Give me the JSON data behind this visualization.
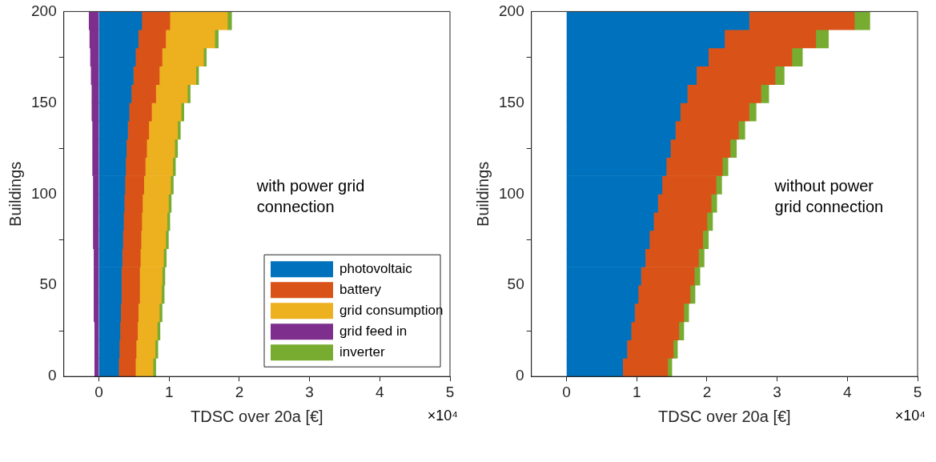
{
  "chart_data": [
    {
      "type": "bar",
      "orientation": "horizontal",
      "stacked": true,
      "x": [
        5,
        15,
        25,
        35,
        45,
        55,
        65,
        75,
        85,
        95,
        105,
        115,
        125,
        135,
        145,
        155,
        165,
        175,
        185,
        195
      ],
      "xlabel": "TDSC over 20a [€]",
      "ylabel": "Buildings",
      "xlim": [
        -0.5,
        5
      ],
      "xticks": [
        0,
        1,
        2,
        3,
        4,
        5
      ],
      "ylim": [
        0,
        200
      ],
      "yticks": [
        0,
        50,
        100,
        150,
        200
      ],
      "grid": false,
      "legend": "bottom right",
      "annotations": [
        "with power grid\nconnection",
        "×10⁴"
      ],
      "series": [
        {
          "name": "photovoltaic",
          "color": "#0072bd",
          "values": [
            0.28,
            0.29,
            0.3,
            0.31,
            0.32,
            0.32,
            0.33,
            0.34,
            0.35,
            0.36,
            0.37,
            0.38,
            0.39,
            0.41,
            0.43,
            0.46,
            0.49,
            0.52,
            0.56,
            0.61
          ]
        },
        {
          "name": "battery",
          "color": "#d95319",
          "values": [
            0.24,
            0.24,
            0.25,
            0.25,
            0.26,
            0.26,
            0.26,
            0.26,
            0.26,
            0.26,
            0.27,
            0.28,
            0.29,
            0.3,
            0.32,
            0.35,
            0.37,
            0.38,
            0.39,
            0.4
          ]
        },
        {
          "name": "grid consumption",
          "color": "#edb120",
          "values": [
            0.25,
            0.27,
            0.28,
            0.3,
            0.31,
            0.32,
            0.33,
            0.35,
            0.36,
            0.37,
            0.38,
            0.39,
            0.4,
            0.41,
            0.42,
            0.45,
            0.52,
            0.59,
            0.7,
            0.82
          ]
        },
        {
          "name": "grid feed in",
          "color": "#7e2f8e",
          "values": [
            -0.06,
            -0.06,
            -0.06,
            -0.07,
            -0.07,
            -0.07,
            -0.07,
            -0.08,
            -0.08,
            -0.08,
            -0.08,
            -0.09,
            -0.09,
            -0.09,
            -0.1,
            -0.1,
            -0.11,
            -0.12,
            -0.13,
            -0.14
          ]
        },
        {
          "name": "inverter",
          "color": "#77ac30",
          "values": [
            0.04,
            0.04,
            0.04,
            0.04,
            0.04,
            0.04,
            0.04,
            0.04,
            0.04,
            0.04,
            0.04,
            0.04,
            0.04,
            0.04,
            0.04,
            0.04,
            0.04,
            0.04,
            0.05,
            0.06
          ]
        }
      ]
    },
    {
      "type": "bar",
      "orientation": "horizontal",
      "stacked": true,
      "x": [
        5,
        15,
        25,
        35,
        45,
        55,
        65,
        75,
        85,
        95,
        105,
        115,
        125,
        135,
        145,
        155,
        165,
        175,
        185,
        195
      ],
      "xlabel": "TDSC over 20a [€]",
      "ylabel": "Buildings",
      "xlim": [
        -0.5,
        5
      ],
      "xticks": [
        0,
        1,
        2,
        3,
        4,
        5
      ],
      "ylim": [
        0,
        200
      ],
      "yticks": [
        0,
        50,
        100,
        150,
        200
      ],
      "grid": false,
      "annotations": [
        "without power\ngrid connection",
        "×10⁴"
      ],
      "series": [
        {
          "color": "#0072bd",
          "values": [
            0.8,
            0.86,
            0.92,
            0.97,
            1.02,
            1.06,
            1.12,
            1.18,
            1.24,
            1.3,
            1.36,
            1.42,
            1.48,
            1.55,
            1.62,
            1.72,
            1.85,
            2.02,
            2.25,
            2.6
          ]
        },
        {
          "color": "#d95319",
          "values": [
            0.64,
            0.66,
            0.68,
            0.7,
            0.74,
            0.76,
            0.76,
            0.76,
            0.76,
            0.76,
            0.77,
            0.8,
            0.85,
            0.9,
            0.98,
            1.05,
            1.12,
            1.19,
            1.3,
            1.5
          ]
        },
        {
          "color": "#77ac30",
          "values": [
            0.06,
            0.06,
            0.07,
            0.07,
            0.07,
            0.08,
            0.08,
            0.08,
            0.08,
            0.08,
            0.08,
            0.08,
            0.09,
            0.09,
            0.1,
            0.11,
            0.13,
            0.15,
            0.18,
            0.22
          ]
        }
      ]
    }
  ]
}
